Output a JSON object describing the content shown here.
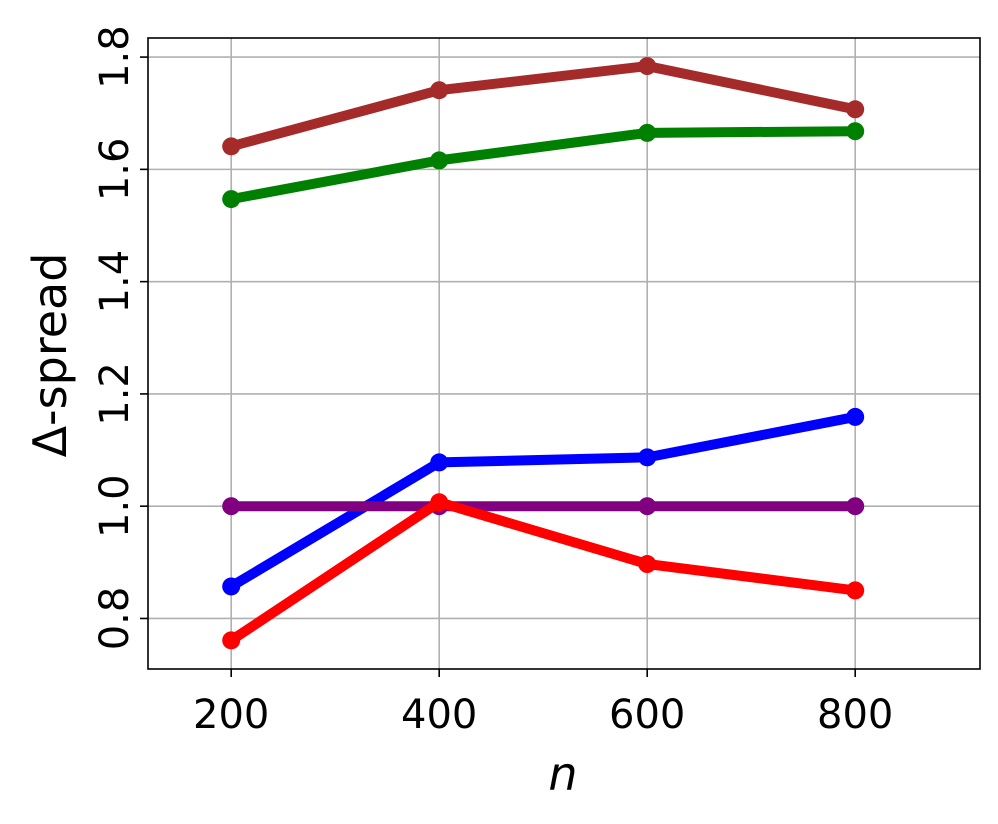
{
  "chart_data": {
    "type": "line",
    "x_label": "n",
    "y_label": "Δ-spread",
    "x": [
      200,
      400,
      600,
      800
    ],
    "xlim": [
      120,
      920
    ],
    "xticks": [
      200,
      400,
      600,
      800
    ],
    "ylim": [
      0.71,
      1.834
    ],
    "yticks": [
      {
        "value": 0.8,
        "label": "0.8"
      },
      {
        "value": 1.0,
        "label": "1.0"
      },
      {
        "value": 1.2,
        "label": "1.2"
      },
      {
        "value": 1.4,
        "label": "1.4"
      },
      {
        "value": 1.6,
        "label": "1.6"
      },
      {
        "value": 1.8,
        "label": "1.8"
      }
    ],
    "grid": true,
    "series": [
      {
        "color": "#a52a2a",
        "values": [
          1.641,
          1.741,
          1.784,
          1.707
        ]
      },
      {
        "color": "#008000",
        "values": [
          1.547,
          1.616,
          1.665,
          1.668
        ]
      },
      {
        "color": "#0000ff",
        "values": [
          0.857,
          1.078,
          1.087,
          1.159
        ]
      },
      {
        "color": "#800080",
        "values": [
          1.0,
          1.0,
          1.0,
          1.0
        ]
      },
      {
        "color": "#ff0000",
        "values": [
          0.761,
          1.007,
          0.897,
          0.85
        ]
      }
    ]
  }
}
